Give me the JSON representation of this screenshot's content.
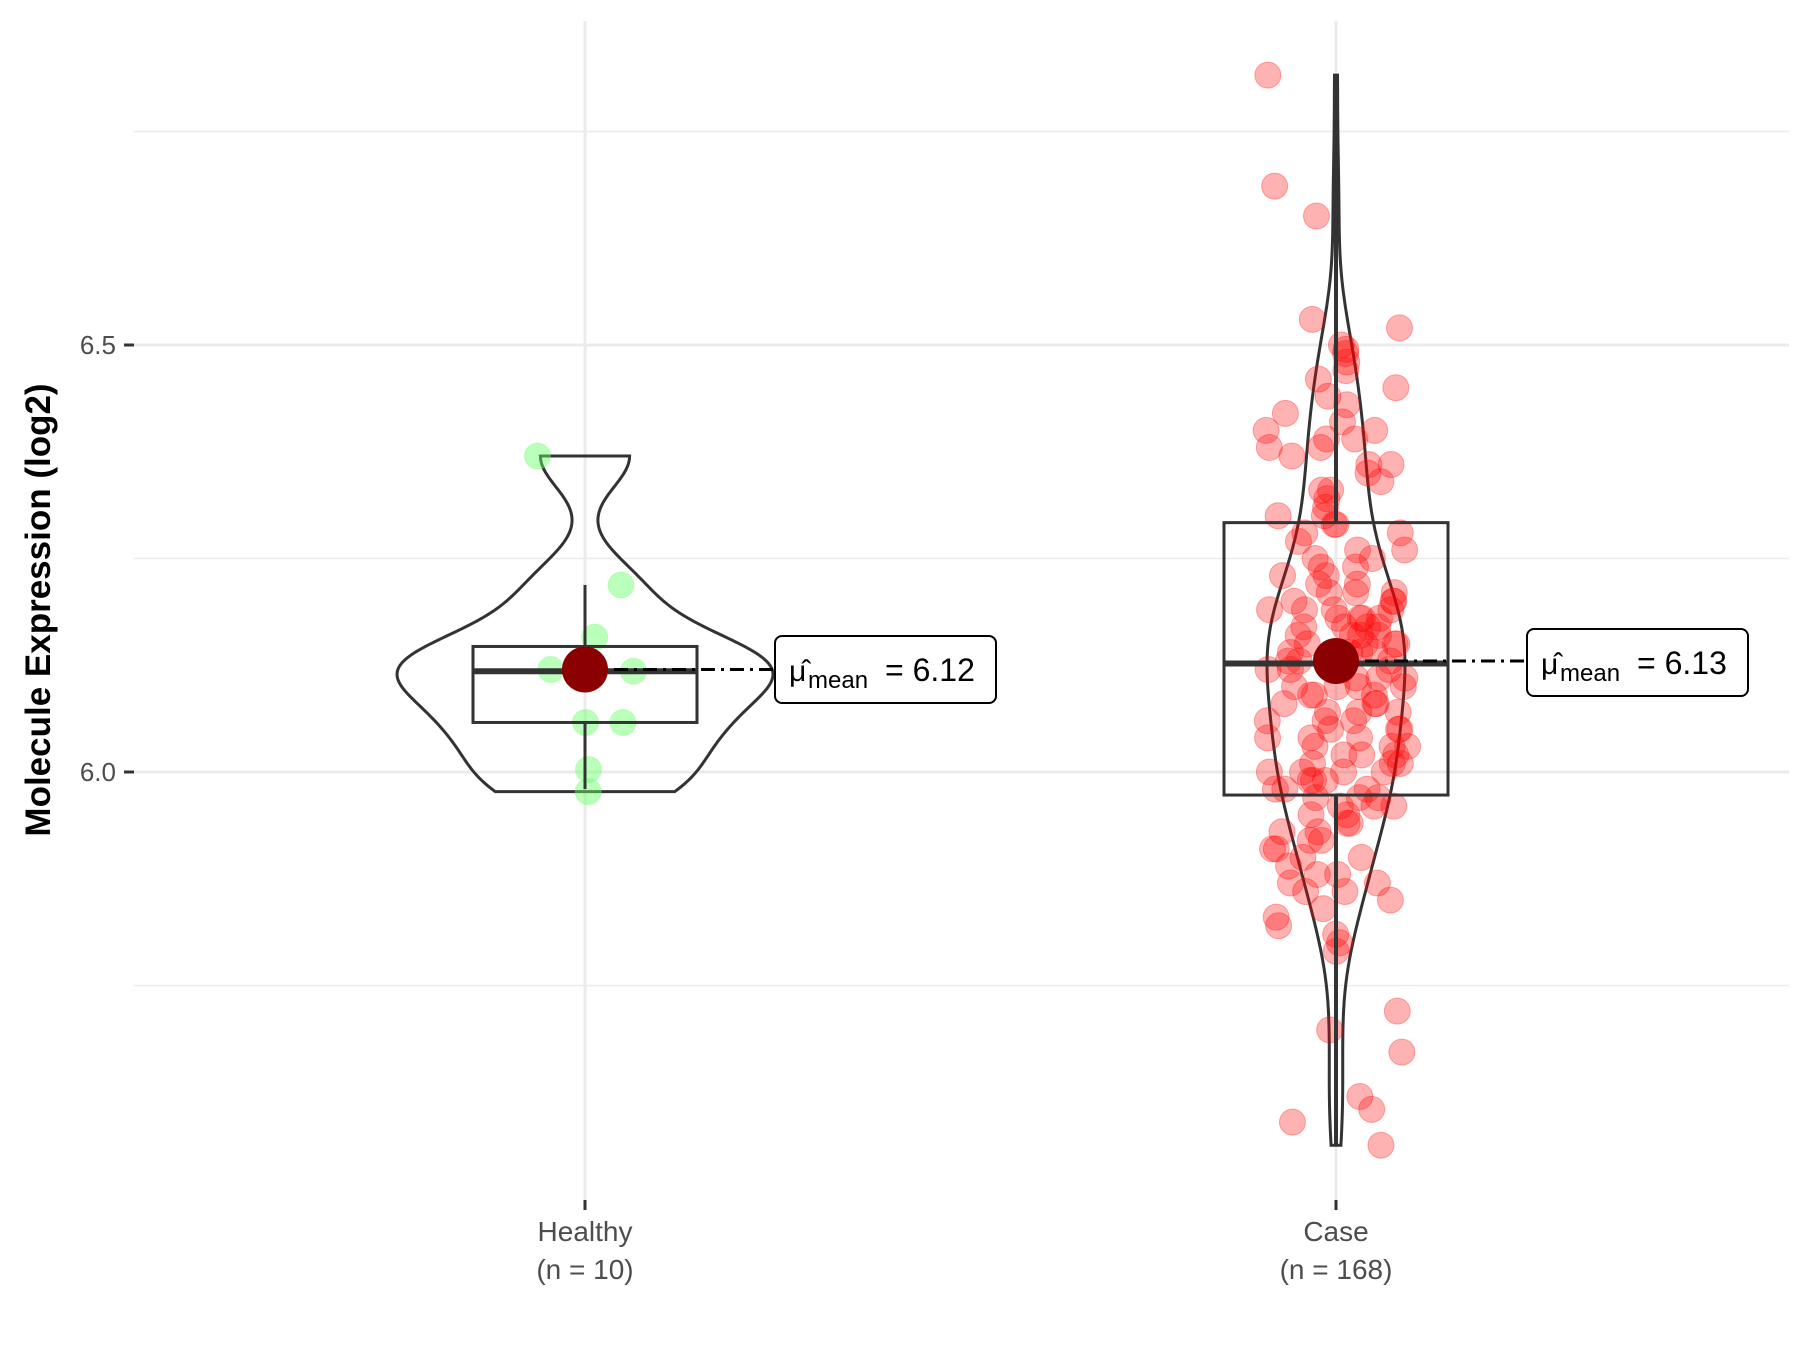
{
  "chart_data": {
    "type": "violin-box-scatter",
    "title": "",
    "xlabel": "",
    "ylabel": "Molecule Expression (log2)",
    "ylim": [
      5.5,
      6.88
    ],
    "yticks": [
      6.0,
      6.5
    ],
    "ytick_labels": [
      "6.0",
      "6.5"
    ],
    "minor_gridlines": [
      5.75,
      6.25,
      6.75
    ],
    "grid": true,
    "colors": {
      "Healthy": "#66ff66",
      "Case": "#ff0000",
      "mean_point": "#8b0000",
      "box": "#333333"
    },
    "groups": [
      {
        "name": "Healthy",
        "n_label": "(n = 10)",
        "mean": 6.12,
        "mean_label_symbol": "μ̂",
        "mean_label_sub": "mean",
        "mean_label_value": "= 6.12",
        "box": {
          "lower_whisker": 5.98,
          "q1": 6.058,
          "median": 6.118,
          "q3": 6.147,
          "upper_whisker": 6.219
        },
        "values": [
          6.37,
          6.219,
          6.158,
          6.12,
          6.12,
          6.118,
          6.058,
          6.058,
          6.003,
          5.977
        ]
      },
      {
        "name": "Case",
        "n_label": "(n = 168)",
        "mean": 6.13,
        "mean_label_symbol": "μ̂",
        "mean_label_sub": "mean",
        "mean_label_value": "= 6.13",
        "box": {
          "lower_whisker": 5.563,
          "q1": 5.973,
          "median": 6.127,
          "q3": 6.292,
          "upper_whisker": 6.816
        },
        "values": [
          6.816,
          6.686,
          6.651,
          6.53,
          6.52,
          6.5,
          6.495,
          6.49,
          6.48,
          6.47,
          6.46,
          6.45,
          5.563,
          5.59,
          5.605,
          5.62,
          5.672,
          5.698,
          5.72,
          5.79,
          5.8,
          5.81,
          5.82,
          5.83,
          5.84,
          5.85,
          6.43,
          6.42,
          6.41,
          6.4,
          6.4,
          6.39,
          6.38,
          6.38,
          6.37,
          6.36,
          6.35,
          6.34,
          6.33,
          6.32,
          6.31,
          6.3,
          6.3,
          6.29,
          6.29,
          6.28,
          6.27,
          6.26,
          6.26,
          6.25,
          6.24,
          6.24,
          6.23,
          6.23,
          6.22,
          6.22,
          6.21,
          6.21,
          6.2,
          6.2,
          6.2,
          6.19,
          6.19,
          6.19,
          6.18,
          6.18,
          6.18,
          6.17,
          6.17,
          6.17,
          6.16,
          6.16,
          6.16,
          6.15,
          6.15,
          6.15,
          6.14,
          6.14,
          6.14,
          6.13,
          6.13,
          6.12,
          6.12,
          6.12,
          6.11,
          6.11,
          6.1,
          6.1,
          6.1,
          6.09,
          6.09,
          6.08,
          6.08,
          6.07,
          6.07,
          6.06,
          6.06,
          6.05,
          6.05,
          6.05,
          6.04,
          6.04,
          6.03,
          6.03,
          6.03,
          6.02,
          6.02,
          6.01,
          6.01,
          6.01,
          6.0,
          6.0,
          6.0,
          5.99,
          5.99,
          5.99,
          5.98,
          5.98,
          5.97,
          5.97,
          5.97,
          5.96,
          5.96,
          5.95,
          5.95,
          5.94,
          5.94,
          5.93,
          5.93,
          5.92,
          5.92,
          5.91,
          5.91,
          5.9,
          5.9,
          5.89,
          5.88,
          5.88,
          5.87,
          5.87,
          5.86,
          5.86,
          6.21,
          6.19,
          6.18,
          6.17,
          6.16,
          6.15,
          6.14,
          6.13,
          6.12,
          6.11,
          6.1,
          6.09,
          6.08,
          6.07,
          6.06,
          6.04,
          6.02,
          6.0,
          5.98,
          5.96,
          6.25,
          6.28,
          6.33,
          6.36,
          6.39,
          6.44
        ]
      }
    ]
  }
}
